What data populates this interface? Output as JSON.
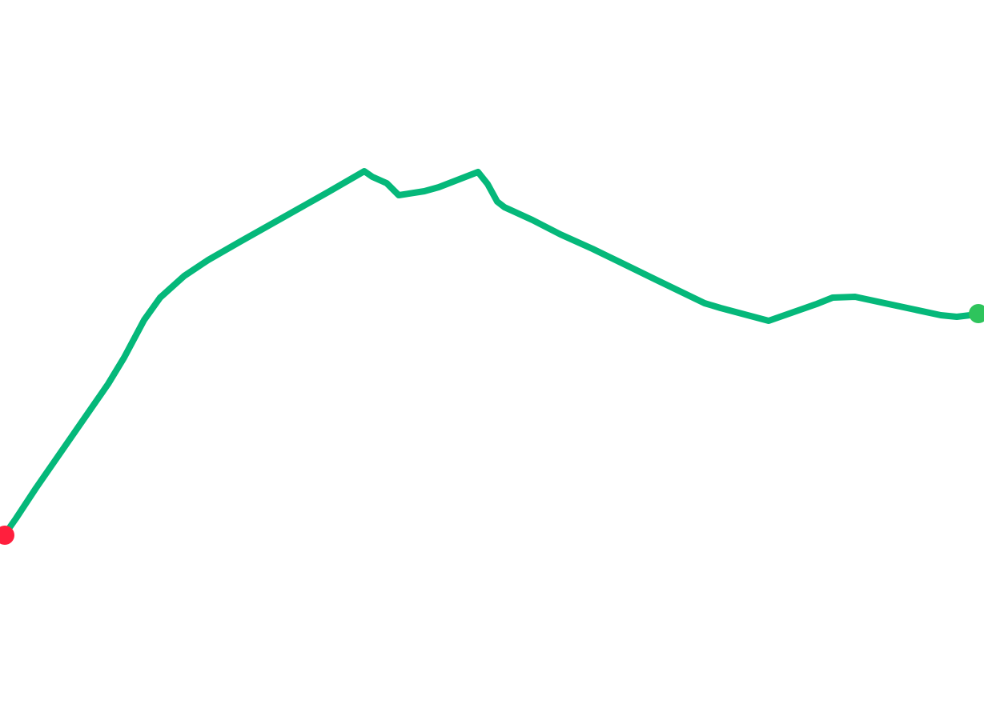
{
  "map": {
    "route": {
      "color": "#05b87a",
      "start_marker_color": "#ff1f3d",
      "end_marker_color": "#2ec45c"
    }
  }
}
